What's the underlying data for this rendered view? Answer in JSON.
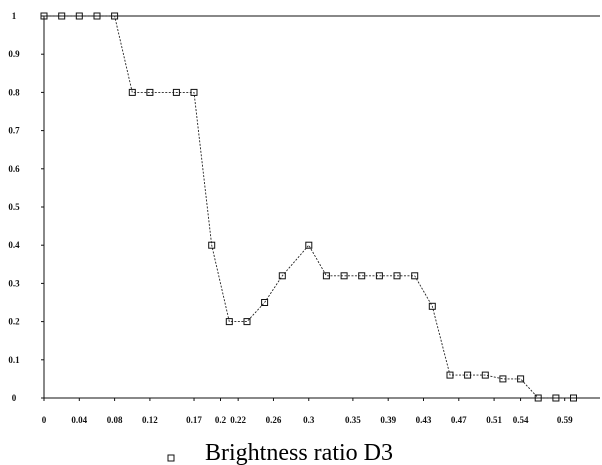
{
  "chart_data": {
    "type": "line",
    "title": "",
    "xlabel": "Brightness ratio D3",
    "ylabel": "",
    "legend_marker": "square",
    "legend_placement": "bottom-left",
    "grid": false,
    "xlim": [
      0,
      0.63
    ],
    "ylim": [
      0,
      1
    ],
    "x_ticks": [
      "0",
      "0.04",
      "0.08",
      "0.12",
      "0.17",
      "0.2",
      "0.22",
      "0.26",
      "0.3",
      "0.35",
      "0.39",
      "0.43",
      "0.47",
      "0.51",
      "0.54",
      "0.59"
    ],
    "y_ticks": [
      "0",
      "0.1",
      "0.2",
      "0.3",
      "0.4",
      "0.5",
      "0.6",
      "0.7",
      "0.8",
      "0.9",
      "1"
    ],
    "reference_line": {
      "y": 1
    },
    "series": [
      {
        "x": [
          0,
          0.02,
          0.04,
          0.06,
          0.08,
          0.1,
          0.12,
          0.15,
          0.17,
          0.19,
          0.21,
          0.23,
          0.25,
          0.27,
          0.3,
          0.32,
          0.34,
          0.36,
          0.38,
          0.4,
          0.42,
          0.44,
          0.46,
          0.48,
          0.5,
          0.52,
          0.54,
          0.56,
          0.58,
          0.6
        ],
        "values": [
          1,
          1,
          1,
          1,
          1,
          0.8,
          0.8,
          0.8,
          0.8,
          0.4,
          0.2,
          0.2,
          0.25,
          0.32,
          0.4,
          0.32,
          0.32,
          0.32,
          0.32,
          0.32,
          0.32,
          0.24,
          0.06,
          0.06,
          0.06,
          0.05,
          0.05,
          0,
          0,
          0
        ]
      }
    ]
  }
}
